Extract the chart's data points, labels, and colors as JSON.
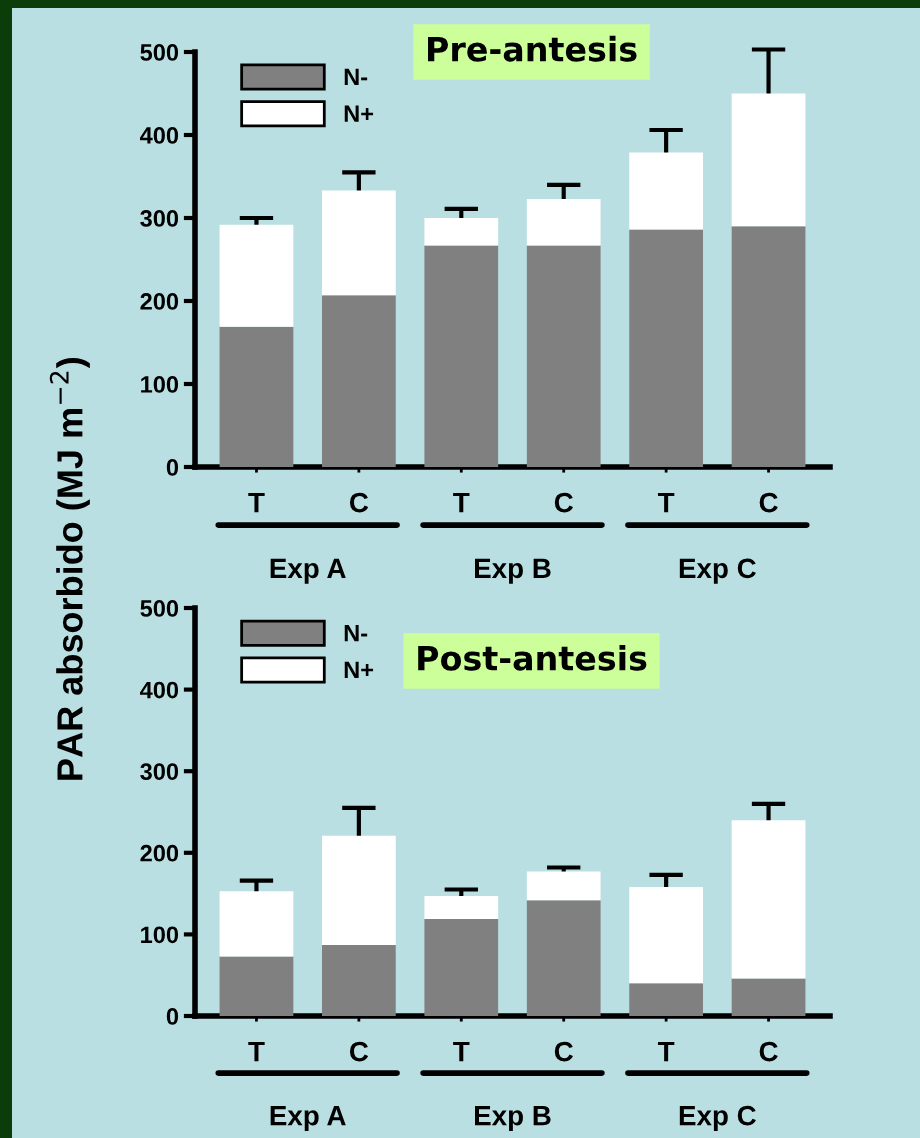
{
  "chart_data": [
    {
      "type": "bar",
      "title": "Pre-antesis",
      "ylabel": "PAR absorbido (MJ m$^{−2}$)",
      "categories": [
        "T",
        "C",
        "T",
        "C",
        "T",
        "C"
      ],
      "stacked": true,
      "legend": "top left",
      "grid": false,
      "ylim": [
        0,
        500
      ],
      "yticks": [
        0,
        100,
        200,
        300,
        400,
        500
      ],
      "annotations": [
        "Exp A",
        "Exp B",
        "Exp C"
      ],
      "series": [
        {
          "name": "N-",
          "color": "#808080",
          "values": [
            169,
            207,
            267,
            267,
            286,
            290
          ]
        },
        {
          "name": "N+",
          "color": "#ffffff",
          "values": [
            123,
            126,
            33,
            56,
            93,
            160
          ],
          "errors": [
            8,
            22,
            11,
            17,
            27,
            53
          ]
        }
      ]
    },
    {
      "type": "bar",
      "title": "Post-antesis",
      "categories": [
        "T",
        "C",
        "T",
        "C",
        "T",
        "C"
      ],
      "stacked": true,
      "legend": "top left",
      "grid": false,
      "ylim": [
        0,
        500
      ],
      "yticks": [
        0,
        100,
        200,
        300,
        400,
        500
      ],
      "annotations": [
        "Exp A",
        "Exp B",
        "Exp C"
      ],
      "series": [
        {
          "name": "N-",
          "color": "#808080",
          "values": [
            73,
            87,
            119,
            142,
            40,
            46
          ]
        },
        {
          "name": "N+",
          "color": "#ffffff",
          "values": [
            80,
            134,
            28,
            35,
            118,
            194
          ],
          "errors": [
            13,
            34,
            8,
            5,
            15,
            20
          ]
        }
      ]
    }
  ]
}
